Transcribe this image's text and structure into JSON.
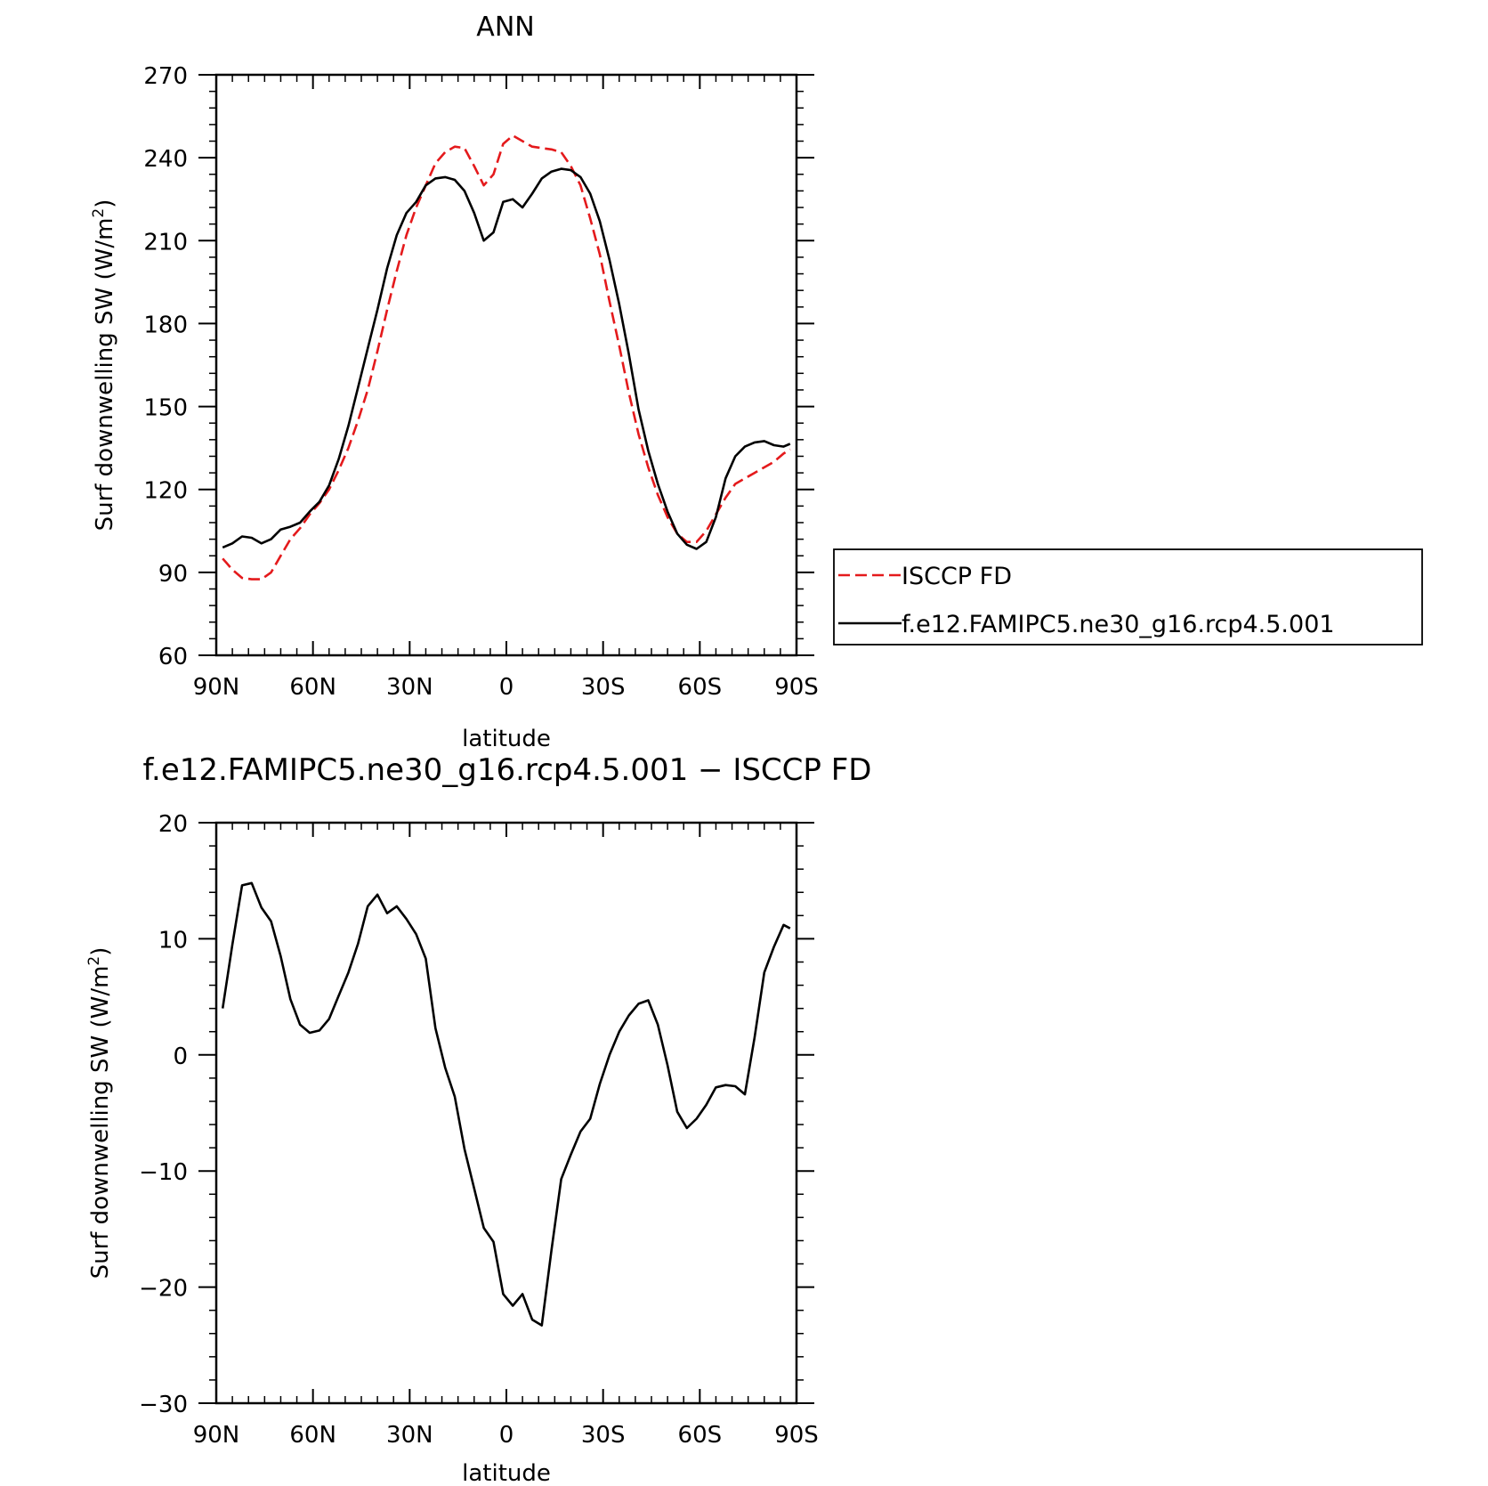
{
  "colors": {
    "obs": "#e41a1c",
    "model": "#000000",
    "diff": "#000000"
  },
  "chart_data": [
    {
      "type": "line",
      "title": "ANN",
      "xlabel": "latitude",
      "ylabel": "Surf downwelling SW (W/m",
      "ylabel_sup": "2",
      "ylabel_close": ")",
      "xlim": [
        90,
        -90
      ],
      "ylim": [
        60,
        270
      ],
      "xticks": [
        90,
        60,
        30,
        0,
        -30,
        -60,
        -90
      ],
      "xtick_labels": [
        "90N",
        "60N",
        "30N",
        "0",
        "30S",
        "60S",
        "90S"
      ],
      "yticks": [
        60,
        90,
        120,
        150,
        180,
        210,
        240,
        270
      ],
      "ytick_labels": [
        "60",
        "90",
        "120",
        "150",
        "180",
        "210",
        "240",
        "270"
      ],
      "legend": {
        "placement": "right",
        "entries": [
          "ISCCP FD",
          "f.e12.FAMIPC5.ne30_g16.rcp4.5.001"
        ]
      },
      "series": [
        {
          "name": "ISCCP FD",
          "style": "dashed",
          "x": [
            88,
            85,
            82,
            79,
            76,
            73,
            70,
            67,
            64,
            61,
            58,
            55,
            52,
            49,
            46,
            43,
            40,
            37,
            34,
            31,
            28,
            25,
            22,
            19,
            16,
            13,
            10,
            7,
            4,
            1,
            -2,
            -5,
            -8,
            -11,
            -14,
            -17,
            -20,
            -23,
            -26,
            -29,
            -32,
            -35,
            -38,
            -41,
            -44,
            -47,
            -50,
            -53,
            -56,
            -59,
            -62,
            -65,
            -68,
            -71,
            -74,
            -77,
            -80,
            -83,
            -86,
            -88
          ],
          "values": [
            95,
            91,
            88,
            87.5,
            87.5,
            90,
            96,
            102,
            106,
            111,
            115,
            120,
            127,
            135,
            145,
            156,
            170,
            185,
            199,
            212,
            222,
            230,
            238,
            242,
            244,
            243.5,
            237,
            230,
            234,
            245,
            248,
            246,
            244,
            243.5,
            243,
            242,
            237,
            230,
            218,
            205,
            188,
            172,
            155,
            140,
            128,
            118,
            110,
            104,
            101,
            101,
            105,
            111,
            117,
            122,
            124,
            126,
            128,
            130,
            133,
            134.5
          ]
        },
        {
          "name": "f.e12.FAMIPC5.ne30_g16.rcp4.5.001",
          "style": "solid",
          "x": [
            88,
            85,
            82,
            79,
            76,
            73,
            70,
            67,
            64,
            61,
            58,
            55,
            52,
            49,
            46,
            43,
            40,
            37,
            34,
            31,
            28,
            25,
            22,
            19,
            16,
            13,
            10,
            7,
            4,
            1,
            -2,
            -5,
            -8,
            -11,
            -14,
            -17,
            -20,
            -23,
            -26,
            -29,
            -32,
            -35,
            -38,
            -41,
            -44,
            -47,
            -50,
            -53,
            -56,
            -59,
            -62,
            -65,
            -68,
            -71,
            -74,
            -77,
            -80,
            -83,
            -86,
            -88
          ],
          "values": [
            99,
            100.5,
            103,
            102.5,
            100.5,
            102,
            105.5,
            106.5,
            108,
            112,
            115.5,
            121.5,
            131,
            143,
            157,
            171,
            185,
            200,
            212,
            220,
            224,
            230,
            232.5,
            233,
            232,
            228,
            220,
            210,
            213,
            224,
            225,
            222,
            227,
            232.5,
            235,
            236,
            235.5,
            233,
            227,
            217,
            203,
            187,
            169,
            149,
            134,
            122,
            112,
            104,
            100,
            98.5,
            101,
            110,
            124,
            132,
            135.5,
            137,
            137.5,
            136,
            135.5,
            136.5
          ]
        }
      ]
    },
    {
      "type": "line",
      "title": "f.e12.FAMIPC5.ne30_g16.rcp4.5.001 − ISCCP FD",
      "xlabel": "latitude",
      "ylabel": "Surf downwelling SW (W/m",
      "ylabel_sup": "2",
      "ylabel_close": ")",
      "xlim": [
        90,
        -90
      ],
      "ylim": [
        -30,
        20
      ],
      "xticks": [
        90,
        60,
        30,
        0,
        -30,
        -60,
        -90
      ],
      "xtick_labels": [
        "90N",
        "60N",
        "30N",
        "0",
        "30S",
        "60S",
        "90S"
      ],
      "yticks": [
        -30,
        -20,
        -10,
        0,
        10,
        20
      ],
      "ytick_labels": [
        "−30",
        "−20",
        "−10",
        "0",
        "10",
        "20"
      ],
      "series": [
        {
          "style": "solid",
          "x": [
            88,
            85,
            82,
            79,
            76,
            73,
            70,
            67,
            64,
            61,
            58,
            55,
            52,
            49,
            46,
            43,
            40,
            37,
            34,
            31,
            28,
            25,
            22,
            19,
            16,
            13,
            10,
            7,
            4,
            1,
            -2,
            -5,
            -8,
            -11,
            -14,
            -17,
            -20,
            -23,
            -26,
            -29,
            -32,
            -35,
            -38,
            -41,
            -44,
            -47,
            -50,
            -53,
            -56,
            -59,
            -62,
            -65,
            -68,
            -71,
            -74,
            -77,
            -80,
            -83,
            -86,
            -88
          ],
          "values": [
            4,
            9.5,
            14.6,
            14.8,
            12.7,
            11.5,
            8.5,
            4.8,
            2.6,
            1.9,
            2.1,
            3.1,
            5.1,
            7.1,
            9.6,
            12.8,
            13.8,
            12.2,
            12.8,
            11.7,
            10.4,
            8.3,
            2.3,
            -1.1,
            -3.6,
            -8.1,
            -11.5,
            -14.9,
            -16.1,
            -20.6,
            -21.6,
            -20.6,
            -22.8,
            -23.3,
            -16.8,
            -10.7,
            -8.6,
            -6.6,
            -5.5,
            -2.5,
            0,
            2,
            3.4,
            4.4,
            4.7,
            2.6,
            -0.9,
            -4.9,
            -6.3,
            -5.5,
            -4.3,
            -2.8,
            -2.6,
            -2.7,
            -3.4,
            1.5,
            7.1,
            9.3,
            11.2,
            10.9
          ]
        }
      ]
    }
  ]
}
